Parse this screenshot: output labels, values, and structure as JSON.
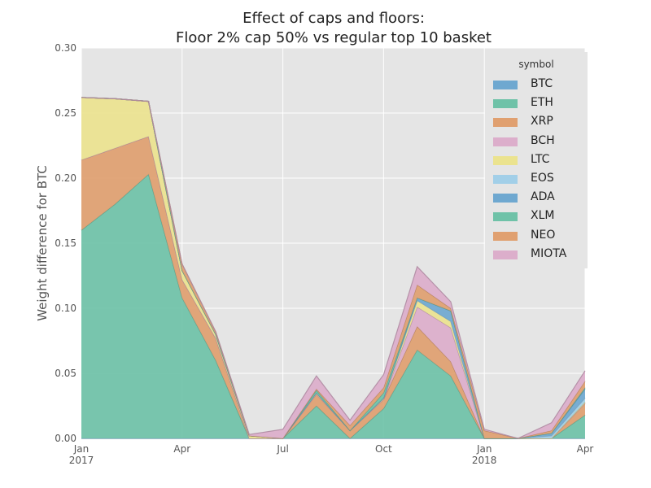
{
  "chart_data": {
    "type": "area",
    "stacked": true,
    "title_lines": [
      "Effect of caps and floors:",
      "Floor 2% cap 50% vs regular top 10 basket"
    ],
    "xlabel": "",
    "ylabel": "Weight difference for BTC",
    "ylim": [
      0,
      0.3
    ],
    "y_ticks": [
      "0.00",
      "0.05",
      "0.10",
      "0.15",
      "0.20",
      "0.25",
      "0.30"
    ],
    "x_months": [
      "2017-01",
      "2017-02",
      "2017-03",
      "2017-04",
      "2017-05",
      "2017-06",
      "2017-07",
      "2017-08",
      "2017-09",
      "2017-10",
      "2017-11",
      "2017-12",
      "2018-01",
      "2018-02",
      "2018-03",
      "2018-04"
    ],
    "x_ticks": [
      {
        "month": "2017-01",
        "label": "Jan",
        "sublabel": "2017"
      },
      {
        "month": "2017-04",
        "label": "Apr",
        "sublabel": ""
      },
      {
        "month": "2017-07",
        "label": "Jul",
        "sublabel": ""
      },
      {
        "month": "2017-10",
        "label": "Oct",
        "sublabel": ""
      },
      {
        "month": "2018-01",
        "label": "Jan",
        "sublabel": "2018"
      },
      {
        "month": "2018-04",
        "label": "Apr",
        "sublabel": ""
      }
    ],
    "grid": true,
    "legend_title": "symbol",
    "legend_position": "top-right",
    "series": [
      {
        "name": "BTC",
        "color": "#6fa8d0",
        "values": [
          0,
          0,
          0,
          0,
          0,
          0,
          0,
          0,
          0,
          0,
          0,
          0,
          0,
          0,
          0,
          0
        ]
      },
      {
        "name": "ETH",
        "color": "#6fc2a8",
        "values": [
          0.16,
          0.18,
          0.203,
          0.108,
          0.06,
          0,
          0,
          0.025,
          0,
          0.023,
          0.068,
          0.048,
          0,
          0,
          0,
          0.018
        ]
      },
      {
        "name": "XRP",
        "color": "#e0a070",
        "values": [
          0.054,
          0.043,
          0.029,
          0.014,
          0.017,
          0,
          0,
          0.009,
          0.006,
          0.007,
          0.018,
          0.011,
          0,
          0,
          0,
          0.009
        ]
      },
      {
        "name": "BCH",
        "color": "#dcaecb",
        "values": [
          0,
          0,
          0,
          0,
          0,
          0,
          0,
          0,
          0,
          0,
          0.015,
          0.026,
          0,
          0,
          0,
          0
        ]
      },
      {
        "name": "LTC",
        "color": "#ebe38f",
        "values": [
          0.048,
          0.038,
          0.027,
          0.007,
          0.003,
          0.002,
          0,
          0.001,
          0,
          0.001,
          0.005,
          0.005,
          0,
          0,
          0,
          0.001
        ]
      },
      {
        "name": "EOS",
        "color": "#a2cfe8",
        "values": [
          0,
          0,
          0,
          0,
          0,
          0,
          0,
          0,
          0,
          0,
          0,
          0,
          0,
          0,
          0.002,
          0.003
        ]
      },
      {
        "name": "ADA",
        "color": "#6fa8d0",
        "values": [
          0,
          0,
          0,
          0,
          0,
          0,
          0,
          0,
          0,
          0,
          0.002,
          0.008,
          0,
          0,
          0.002,
          0.007
        ]
      },
      {
        "name": "XLM",
        "color": "#6fc2a8",
        "values": [
          0,
          0,
          0,
          0,
          0,
          0,
          0,
          0.002,
          0,
          0.004,
          0,
          0,
          0,
          0,
          0,
          0.001
        ]
      },
      {
        "name": "NEO",
        "color": "#e0a070",
        "values": [
          0,
          0,
          0,
          0.005,
          0.002,
          0,
          0,
          0.001,
          0.004,
          0.004,
          0.01,
          0.002,
          0.006,
          0,
          0.002,
          0.005
        ]
      },
      {
        "name": "MIOTA",
        "color": "#dcaecb",
        "values": [
          0,
          0,
          0,
          0,
          0,
          0.001,
          0.007,
          0.01,
          0.004,
          0.01,
          0.014,
          0.005,
          0.001,
          0,
          0.006,
          0.008
        ]
      }
    ]
  }
}
